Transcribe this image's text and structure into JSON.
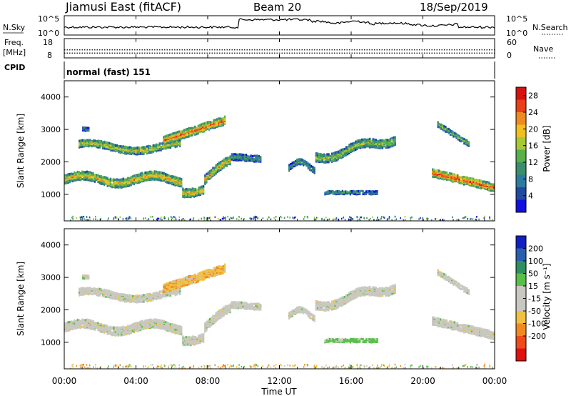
{
  "header": {
    "station": "Jiamusi East (fitACF)",
    "beam": "Beam 20",
    "date": "18/Sep/2019"
  },
  "left_labels": {
    "nsky": "N.Sky",
    "freq": "Freq.",
    "freq_unit": "[MHz]",
    "cpid": "CPID"
  },
  "right_labels": {
    "nsearch": "N.Search",
    "nave": "Nave"
  },
  "cpid_text": "normal (fast) 151",
  "colors": {
    "power_scale": [
      "#1010e0",
      "#1f4aa0",
      "#2e7ba0",
      "#3a8f6a",
      "#57b04a",
      "#a8c838",
      "#f0c020",
      "#f08a20",
      "#e84018",
      "#d81010"
    ],
    "velocity_scale": [
      "#e01010",
      "#f04a18",
      "#f08a20",
      "#f0c040",
      "#c8c8c0",
      "#c8c8c0",
      "#57c048",
      "#2e8f60",
      "#2a5fb0",
      "#1020c0"
    ]
  },
  "chart_data": [
    {
      "type": "line",
      "name": "noise-panel",
      "ylabel_left": "N.Sky",
      "ylabel_right": "N.Search",
      "left_ticks": [
        "10^5",
        "10^0"
      ],
      "right_ticks": [
        "10^5",
        "10^0"
      ],
      "xlim": [
        "00:00",
        "24:00"
      ]
    },
    {
      "type": "line",
      "name": "frequency-panel",
      "ylabel_left": "Freq. [MHz]",
      "ylabel_right": "Nave",
      "left_ticks": [
        18,
        8
      ],
      "right_ticks": [
        60,
        0
      ],
      "freq_mhz": 10.5,
      "nave": 25
    },
    {
      "type": "heatmap",
      "name": "power-panel",
      "ylabel": "Slant Range [km]",
      "yticks": [
        1000,
        2000,
        3000,
        4000
      ],
      "ylim": [
        180,
        4500
      ],
      "colorbar_label": "Power [dB]",
      "colorbar_ticks": [
        4,
        8,
        12,
        16,
        20,
        24,
        28
      ],
      "colorbar_range": [
        0,
        30
      ]
    },
    {
      "type": "heatmap",
      "name": "velocity-panel",
      "ylabel": "Slant Range [km]",
      "yticks": [
        1000,
        2000,
        3000,
        4000
      ],
      "ylim": [
        180,
        4500
      ],
      "colorbar_label": "Velocity [m s⁻¹]",
      "colorbar_ticks": [
        200,
        100,
        50,
        15,
        -15,
        -50,
        -100,
        -200
      ]
    }
  ],
  "x_axis": {
    "ticks": [
      "00:00",
      "04:00",
      "08:00",
      "12:00",
      "16:00",
      "20:00",
      "00:00"
    ],
    "label": "Time UT"
  }
}
